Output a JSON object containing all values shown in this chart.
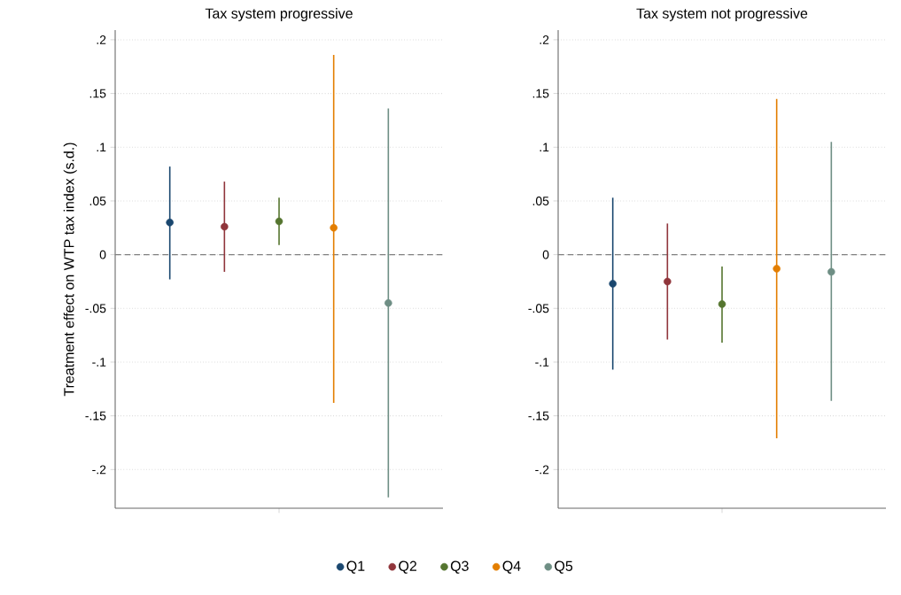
{
  "chart_data": [
    {
      "type": "scatter",
      "title": "Tax system progressive",
      "ylabel": "Treatment effect on WTP tax index (s.d.)",
      "marker": "circle",
      "grid": "y",
      "legend": "bottom",
      "tick_labels": "y",
      "categories": [
        null,
        null,
        null,
        null,
        null
      ],
      "ylim": [
        -0.236,
        0.209
      ],
      "yticks": [
        {
          "value": -0.2,
          "label": "-.2"
        },
        {
          "value": -0.15,
          "label": "-.15"
        },
        {
          "value": -0.1,
          "label": "-.1"
        },
        {
          "value": -0.05,
          "label": "-.05"
        },
        {
          "value": 0,
          "label": "0"
        },
        {
          "value": 0.05,
          "label": ".05"
        },
        {
          "value": 0.1,
          "label": ".1"
        },
        {
          "value": 0.15,
          "label": ".15"
        },
        {
          "value": 0.2,
          "label": ".2"
        }
      ],
      "ref_lines": [
        {
          "axis": "y",
          "value": 0,
          "color": "#808080",
          "line_style": "dashed"
        }
      ],
      "series": [
        {
          "name": "Q1",
          "color": "#1a476f",
          "values": [
            0.03,
            null,
            null,
            null,
            null
          ],
          "errors": [
            [
              -0.023,
              0.082
            ],
            null,
            null,
            null,
            null
          ]
        },
        {
          "name": "Q2",
          "color": "#90353b",
          "values": [
            null,
            0.026,
            null,
            null,
            null
          ],
          "errors": [
            null,
            [
              -0.016,
              0.068
            ],
            null,
            null,
            null
          ]
        },
        {
          "name": "Q3",
          "color": "#55752f",
          "values": [
            null,
            null,
            0.031,
            null,
            null
          ],
          "errors": [
            null,
            null,
            [
              0.009,
              0.053
            ],
            null,
            null
          ]
        },
        {
          "name": "Q4",
          "color": "#e37e00",
          "values": [
            null,
            null,
            null,
            0.025,
            null
          ],
          "errors": [
            null,
            null,
            null,
            [
              -0.138,
              0.186
            ],
            null
          ]
        },
        {
          "name": "Q5",
          "color": "#6e8e84",
          "values": [
            null,
            null,
            null,
            null,
            -0.045
          ],
          "errors": [
            null,
            null,
            null,
            null,
            [
              -0.226,
              0.136
            ]
          ]
        }
      ]
    },
    {
      "type": "scatter",
      "title": "Tax system not progressive",
      "marker": "circle",
      "grid": "y",
      "tick_labels": "y",
      "categories": [
        null,
        null,
        null,
        null,
        null
      ],
      "ylim": [
        -0.236,
        0.209
      ],
      "yticks": [
        {
          "value": -0.2,
          "label": "-.2"
        },
        {
          "value": -0.15,
          "label": "-.15"
        },
        {
          "value": -0.1,
          "label": "-.1"
        },
        {
          "value": -0.05,
          "label": "-.05"
        },
        {
          "value": 0,
          "label": "0"
        },
        {
          "value": 0.05,
          "label": ".05"
        },
        {
          "value": 0.1,
          "label": ".1"
        },
        {
          "value": 0.15,
          "label": ".15"
        },
        {
          "value": 0.2,
          "label": ".2"
        }
      ],
      "ref_lines": [
        {
          "axis": "y",
          "value": 0,
          "color": "#808080",
          "line_style": "dashed"
        }
      ],
      "series": [
        {
          "color": "#1a476f",
          "values": [
            -0.027,
            null,
            null,
            null,
            null
          ],
          "errors": [
            [
              -0.107,
              0.053
            ],
            null,
            null,
            null,
            null
          ]
        },
        {
          "color": "#90353b",
          "values": [
            null,
            -0.025,
            null,
            null,
            null
          ],
          "errors": [
            null,
            [
              -0.079,
              0.029
            ],
            null,
            null,
            null
          ]
        },
        {
          "color": "#55752f",
          "values": [
            null,
            null,
            -0.046,
            null,
            null
          ],
          "errors": [
            null,
            null,
            [
              -0.082,
              -0.011
            ],
            null,
            null
          ]
        },
        {
          "color": "#e37e00",
          "values": [
            null,
            null,
            null,
            -0.013,
            null
          ],
          "errors": [
            null,
            null,
            null,
            [
              -0.171,
              0.145
            ],
            null
          ]
        },
        {
          "color": "#6e8e84",
          "values": [
            null,
            null,
            null,
            null,
            -0.016
          ],
          "errors": [
            null,
            null,
            null,
            null,
            [
              -0.136,
              0.105
            ]
          ]
        }
      ]
    }
  ]
}
